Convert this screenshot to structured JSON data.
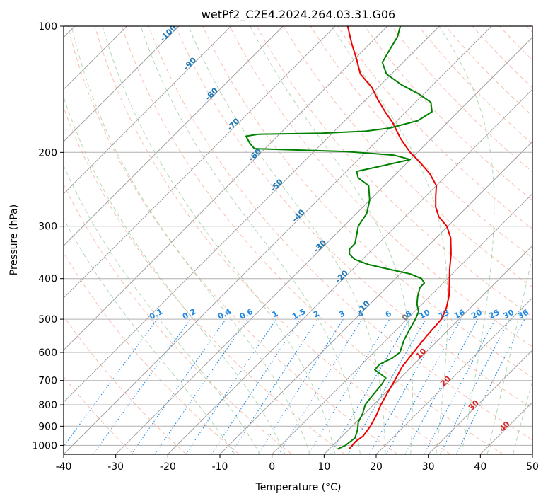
{
  "chart_data": {
    "type": "skew-t",
    "title": "wetPf2_C2E4.2024.264.03.31.G06",
    "xlabel": "Temperature (°C)",
    "ylabel": "Pressure (hPa)",
    "xlim": [
      -40,
      50
    ],
    "ylim": [
      1050,
      100
    ],
    "y_scale": "log",
    "grid": true,
    "x_ticks": [
      -40,
      -30,
      -20,
      -10,
      0,
      10,
      20,
      30,
      40,
      50
    ],
    "y_ticks": [
      1000,
      900,
      800,
      700,
      600,
      500,
      400,
      300,
      200,
      100
    ],
    "isotherms_c": [
      -150,
      -140,
      -130,
      -120,
      -110,
      -100,
      -90,
      -80,
      -70,
      -60,
      -50,
      -40,
      -30,
      -20,
      -10,
      0,
      10,
      20,
      30,
      40,
      50
    ],
    "isotherm_labels": [
      -100,
      -90,
      -80,
      -70,
      -60,
      -50,
      -40,
      -30,
      -20,
      -10,
      0,
      10,
      20,
      30,
      40
    ],
    "mixing_ratio_labels": [
      "0.1",
      "0.2",
      "0.4",
      "0.6",
      "1",
      "1.5",
      "2",
      "3",
      "4",
      "6",
      "8",
      "10",
      "13",
      "16",
      "20",
      "25",
      "30",
      "36"
    ],
    "mixing_ratio_values": [
      0.1,
      0.2,
      0.4,
      0.6,
      1,
      1.5,
      2,
      3,
      4,
      6,
      8,
      10,
      13,
      16,
      20,
      25,
      30,
      36
    ],
    "series": [
      {
        "color": "#ee0000",
        "points": [
          {
            "p": 1020,
            "t": 13.8
          },
          {
            "p": 980,
            "t": 13.6
          },
          {
            "p": 950,
            "t": 14.0
          },
          {
            "p": 900,
            "t": 13.5
          },
          {
            "p": 850,
            "t": 12.6
          },
          {
            "p": 800,
            "t": 11.4
          },
          {
            "p": 750,
            "t": 10.4
          },
          {
            "p": 700,
            "t": 9.4
          },
          {
            "p": 650,
            "t": 8.2
          },
          {
            "p": 600,
            "t": 7.6
          },
          {
            "p": 550,
            "t": 7.0
          },
          {
            "p": 500,
            "t": 6.6
          },
          {
            "p": 470,
            "t": 5.4
          },
          {
            "p": 440,
            "t": 3.6
          },
          {
            "p": 410,
            "t": 1.2
          },
          {
            "p": 380,
            "t": -1.4
          },
          {
            "p": 350,
            "t": -4.0
          },
          {
            "p": 320,
            "t": -7.2
          },
          {
            "p": 300,
            "t": -10.2
          },
          {
            "p": 285,
            "t": -13.5
          },
          {
            "p": 270,
            "t": -16.0
          },
          {
            "p": 255,
            "t": -18.0
          },
          {
            "p": 240,
            "t": -20.0
          },
          {
            "p": 225,
            "t": -23.5
          },
          {
            "p": 210,
            "t": -28.0
          },
          {
            "p": 200,
            "t": -31.4
          },
          {
            "p": 185,
            "t": -36.0
          },
          {
            "p": 170,
            "t": -40.4
          },
          {
            "p": 160,
            "t": -44.0
          },
          {
            "p": 150,
            "t": -47.6
          },
          {
            "p": 140,
            "t": -51.2
          },
          {
            "p": 130,
            "t": -56.0
          },
          {
            "p": 120,
            "t": -59.5
          },
          {
            "p": 110,
            "t": -63.5
          },
          {
            "p": 100,
            "t": -67.6
          }
        ]
      },
      {
        "color": "#008000",
        "points": [
          {
            "p": 1020,
            "t": 11.6
          },
          {
            "p": 1000,
            "t": 12.4
          },
          {
            "p": 960,
            "t": 12.8
          },
          {
            "p": 920,
            "t": 11.8
          },
          {
            "p": 880,
            "t": 10.4
          },
          {
            "p": 840,
            "t": 9.6
          },
          {
            "p": 800,
            "t": 8.4
          },
          {
            "p": 760,
            "t": 8.0
          },
          {
            "p": 720,
            "t": 7.7
          },
          {
            "p": 690,
            "t": 7.2
          },
          {
            "p": 660,
            "t": 3.5
          },
          {
            "p": 640,
            "t": 3.4
          },
          {
            "p": 620,
            "t": 4.6
          },
          {
            "p": 600,
            "t": 5.0
          },
          {
            "p": 560,
            "t": 3.4
          },
          {
            "p": 540,
            "t": 2.8
          },
          {
            "p": 520,
            "t": 2.2
          },
          {
            "p": 500,
            "t": 1.6
          },
          {
            "p": 480,
            "t": 0.8
          },
          {
            "p": 460,
            "t": -1.0
          },
          {
            "p": 440,
            "t": -2.4
          },
          {
            "p": 420,
            "t": -3.6
          },
          {
            "p": 410,
            "t": -3.6
          },
          {
            "p": 400,
            "t": -5.0
          },
          {
            "p": 390,
            "t": -8.0
          },
          {
            "p": 380,
            "t": -13.0
          },
          {
            "p": 370,
            "t": -18.0
          },
          {
            "p": 360,
            "t": -21.5
          },
          {
            "p": 350,
            "t": -23.5
          },
          {
            "p": 340,
            "t": -24.5
          },
          {
            "p": 330,
            "t": -24.5
          },
          {
            "p": 315,
            "t": -25.8
          },
          {
            "p": 300,
            "t": -27.2
          },
          {
            "p": 280,
            "t": -28.0
          },
          {
            "p": 260,
            "t": -30.0
          },
          {
            "p": 240,
            "t": -33.0
          },
          {
            "p": 230,
            "t": -36.5
          },
          {
            "p": 222,
            "t": -38.0
          },
          {
            "p": 215,
            "t": -34.0
          },
          {
            "p": 208,
            "t": -30.0
          },
          {
            "p": 203,
            "t": -34.0
          },
          {
            "p": 199,
            "t": -44.0
          },
          {
            "p": 196,
            "t": -62.0
          },
          {
            "p": 190,
            "t": -64.0
          },
          {
            "p": 183,
            "t": -66.0
          },
          {
            "p": 181,
            "t": -64.0
          },
          {
            "p": 180,
            "t": -52.0
          },
          {
            "p": 178,
            "t": -44.0
          },
          {
            "p": 175,
            "t": -40.0
          },
          {
            "p": 168,
            "t": -36.0
          },
          {
            "p": 160,
            "t": -35.0
          },
          {
            "p": 152,
            "t": -37.0
          },
          {
            "p": 145,
            "t": -41.0
          },
          {
            "p": 138,
            "t": -46.0
          },
          {
            "p": 130,
            "t": -51.0
          },
          {
            "p": 122,
            "t": -54.0
          },
          {
            "p": 114,
            "t": -55.0
          },
          {
            "p": 106,
            "t": -56.0
          },
          {
            "p": 100,
            "t": -57.5
          }
        ]
      }
    ]
  }
}
